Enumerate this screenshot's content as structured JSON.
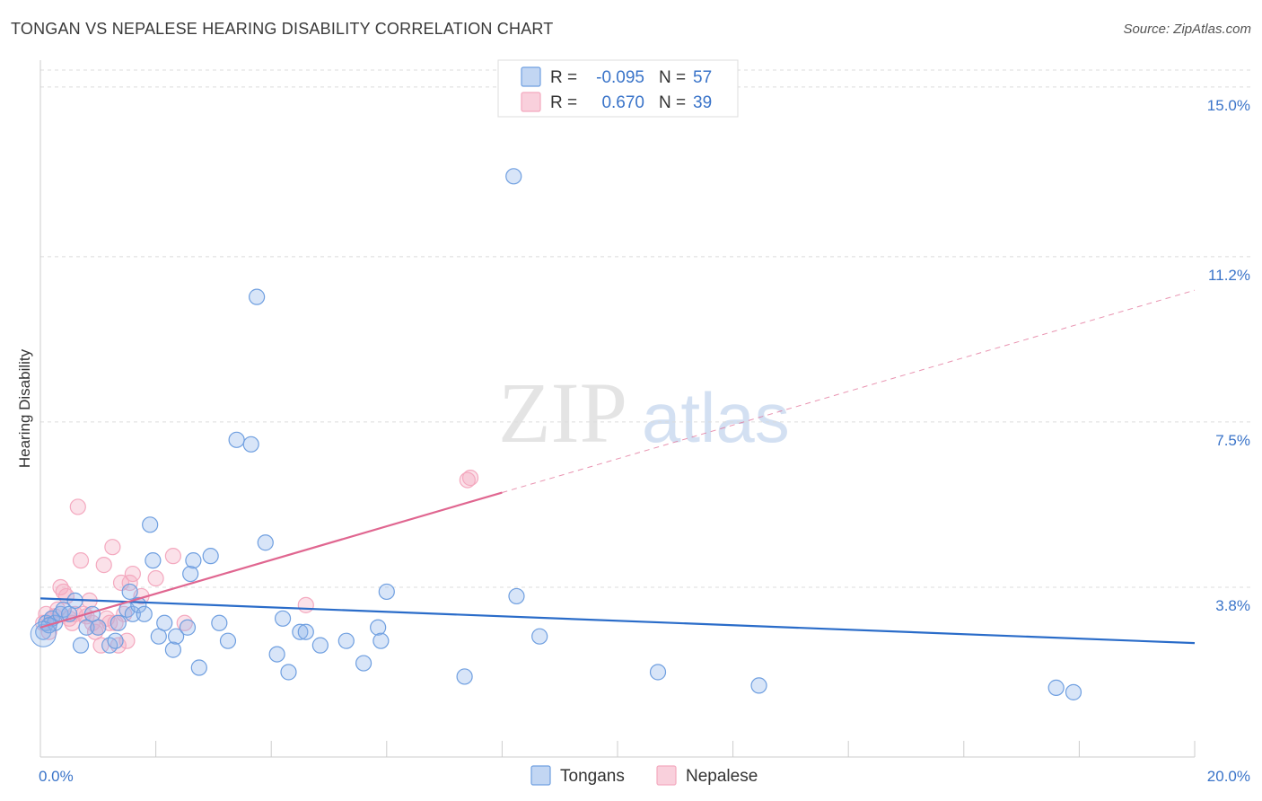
{
  "title": "TONGAN VS NEPALESE HEARING DISABILITY CORRELATION CHART",
  "source": "Source: ZipAtlas.com",
  "watermark": {
    "zip": "ZIP",
    "atlas": "atlas"
  },
  "colors": {
    "tongans": "#8fb5ea",
    "tongans_line": "#2a6cc9",
    "nepalese": "#f4a9bf",
    "nepalese_line": "#e06690",
    "tick": "#3a74c9"
  },
  "legend": {
    "r_label": "R =",
    "n_label": "N =",
    "tongans_r": "-0.095",
    "tongans_n": "57",
    "nepalese_r": "0.670",
    "nepalese_n": "39"
  },
  "bottom_legend": [
    "Tongans",
    "Nepalese"
  ],
  "chart_data": {
    "type": "scatter",
    "title": "TONGAN VS NEPALESE HEARING DISABILITY CORRELATION CHART",
    "xlabel": "",
    "ylabel": "Hearing Disability",
    "xlim": [
      0,
      20
    ],
    "ylim": [
      0,
      15.6
    ],
    "x_tick_labels": [
      "0.0%",
      "20.0%"
    ],
    "y_ticks": [
      3.8,
      7.5,
      11.2,
      15.0
    ],
    "y_tick_labels": [
      "3.8%",
      "7.5%",
      "11.2%",
      "15.0%"
    ],
    "grid": true,
    "series": [
      {
        "name": "Tongans",
        "r": -0.095,
        "n": 57,
        "trend": {
          "x": [
            0,
            20
          ],
          "y": [
            3.55,
            2.55
          ]
        },
        "points": [
          [
            0.05,
            2.8
          ],
          [
            0.1,
            3.0
          ],
          [
            0.2,
            3.1
          ],
          [
            0.25,
            3.0
          ],
          [
            0.35,
            3.2
          ],
          [
            0.4,
            3.3
          ],
          [
            0.5,
            3.2
          ],
          [
            0.6,
            3.5
          ],
          [
            0.7,
            2.5
          ],
          [
            0.8,
            2.9
          ],
          [
            0.9,
            3.2
          ],
          [
            1.0,
            2.9
          ],
          [
            1.2,
            2.5
          ],
          [
            1.3,
            2.6
          ],
          [
            1.35,
            3.0
          ],
          [
            1.5,
            3.3
          ],
          [
            1.55,
            3.7
          ],
          [
            1.6,
            3.2
          ],
          [
            1.7,
            3.4
          ],
          [
            1.8,
            3.2
          ],
          [
            1.9,
            5.2
          ],
          [
            1.95,
            4.4
          ],
          [
            2.05,
            2.7
          ],
          [
            2.15,
            3.0
          ],
          [
            2.3,
            2.4
          ],
          [
            2.35,
            2.7
          ],
          [
            2.55,
            2.9
          ],
          [
            2.6,
            4.1
          ],
          [
            2.65,
            4.4
          ],
          [
            2.75,
            2.0
          ],
          [
            2.95,
            4.5
          ],
          [
            3.1,
            3.0
          ],
          [
            3.25,
            2.6
          ],
          [
            3.4,
            7.1
          ],
          [
            3.65,
            7.0
          ],
          [
            3.75,
            10.3
          ],
          [
            3.9,
            4.8
          ],
          [
            4.1,
            2.3
          ],
          [
            4.2,
            3.1
          ],
          [
            4.3,
            1.9
          ],
          [
            4.5,
            2.8
          ],
          [
            4.6,
            2.8
          ],
          [
            4.85,
            2.5
          ],
          [
            5.3,
            2.6
          ],
          [
            5.6,
            2.1
          ],
          [
            5.85,
            2.9
          ],
          [
            5.9,
            2.6
          ],
          [
            6.0,
            3.7
          ],
          [
            7.35,
            1.8
          ],
          [
            8.2,
            13.0
          ],
          [
            8.25,
            3.6
          ],
          [
            8.65,
            2.7
          ],
          [
            10.7,
            1.9
          ],
          [
            12.45,
            1.6
          ],
          [
            17.6,
            1.55
          ],
          [
            17.9,
            1.45
          ],
          [
            0.15,
            2.95
          ]
        ]
      },
      {
        "name": "Nepalese",
        "r": 0.67,
        "n": 39,
        "trend": {
          "x": [
            0,
            20
          ],
          "y": [
            2.9,
            10.45
          ]
        },
        "trend_solid_until_x": 8.0,
        "points": [
          [
            0.05,
            3.0
          ],
          [
            0.1,
            3.2
          ],
          [
            0.15,
            2.8
          ],
          [
            0.2,
            3.1
          ],
          [
            0.25,
            3.15
          ],
          [
            0.3,
            3.3
          ],
          [
            0.35,
            3.8
          ],
          [
            0.4,
            3.7
          ],
          [
            0.45,
            3.6
          ],
          [
            0.5,
            3.1
          ],
          [
            0.55,
            3.0
          ],
          [
            0.6,
            3.2
          ],
          [
            0.65,
            5.6
          ],
          [
            0.7,
            4.4
          ],
          [
            0.75,
            3.2
          ],
          [
            0.8,
            3.15
          ],
          [
            0.85,
            3.5
          ],
          [
            0.9,
            3.0
          ],
          [
            0.95,
            2.8
          ],
          [
            1.0,
            2.9
          ],
          [
            1.05,
            2.5
          ],
          [
            1.1,
            4.3
          ],
          [
            1.15,
            3.1
          ],
          [
            1.2,
            3.0
          ],
          [
            1.25,
            4.7
          ],
          [
            1.3,
            3.0
          ],
          [
            1.35,
            2.5
          ],
          [
            1.4,
            3.9
          ],
          [
            1.45,
            3.2
          ],
          [
            1.5,
            2.6
          ],
          [
            1.55,
            3.9
          ],
          [
            1.6,
            4.1
          ],
          [
            1.75,
            3.6
          ],
          [
            2.0,
            4.0
          ],
          [
            2.3,
            4.5
          ],
          [
            2.5,
            3.0
          ],
          [
            4.6,
            3.4
          ],
          [
            7.4,
            6.2
          ],
          [
            7.45,
            6.25
          ]
        ]
      }
    ]
  }
}
